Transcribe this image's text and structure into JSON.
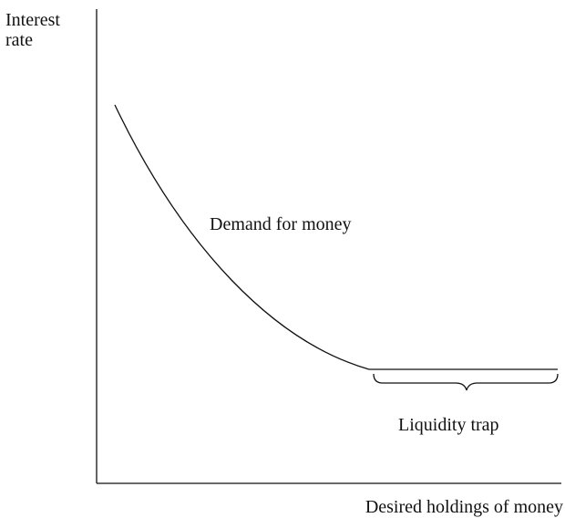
{
  "y_axis_label": [
    "Interest",
    "rate"
  ],
  "x_axis_label": "Desired holdings of money",
  "curve_label": "Demand for money",
  "trap_label": "Liquidity trap"
}
